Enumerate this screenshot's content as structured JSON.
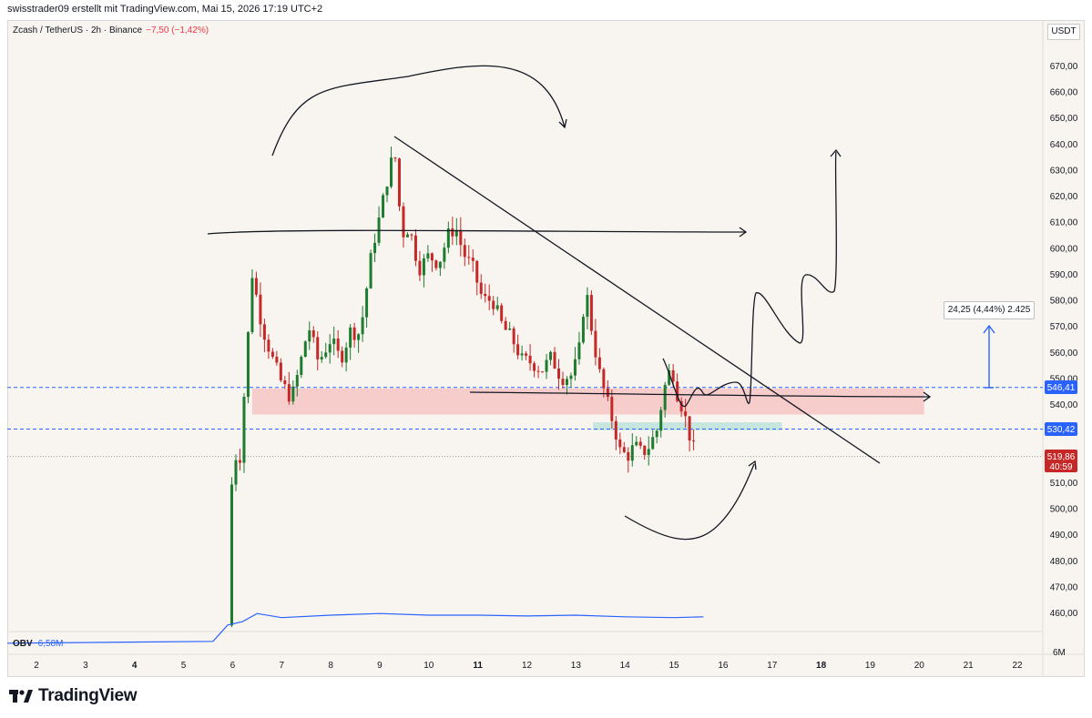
{
  "header": {
    "author_line": "swisstrader09 erstellt mit TradingView.com, Mai 15, 2026 17:19 UTC+2"
  },
  "chart": {
    "symbol": "Zcash / TetherUS · 2h · Binance",
    "change": "−7,50 (−1,42%)",
    "currency": "USDT",
    "measure_label": "24,25 (4,44%) 2.425",
    "price_labels": {
      "upper_level": "546,41",
      "lower_level": "530,42",
      "last_price": "519,86",
      "countdown": "40:59"
    },
    "indicator": {
      "name": "OBV",
      "value": "6,58M",
      "axis_label": "6M"
    },
    "colors": {
      "up": "#089981",
      "down": "#f23645",
      "up_candle": "#1e7c2e",
      "down_candle": "#c62828",
      "zone_red": "#f7c5c5",
      "zone_teal": "#bfe3dc",
      "level_line": "#2962ff",
      "obv_line": "#2962ff",
      "background": "#f8f4ef"
    }
  },
  "chart_data": {
    "type": "candlestick",
    "timeframe": "2h",
    "ylim": [
      450,
      675
    ],
    "y_ticks": [
      "670,00",
      "660,00",
      "650,00",
      "640,00",
      "630,00",
      "620,00",
      "610,00",
      "600,00",
      "590,00",
      "580,00",
      "570,00",
      "560,00",
      "550,00",
      "540,00",
      "530,00",
      "520,00",
      "510,00",
      "500,00",
      "490,00",
      "480,00",
      "470,00",
      "460,00"
    ],
    "x_ticks": [
      "2",
      "3",
      "4",
      "5",
      "6",
      "7",
      "8",
      "9",
      "10",
      "11",
      "12",
      "13",
      "14",
      "15",
      "16",
      "17",
      "18",
      "19",
      "20",
      "21",
      "22"
    ],
    "x_ticks_bold": [
      "4",
      "11",
      "18"
    ],
    "levels": [
      546.41,
      530.42
    ],
    "last_price": 519.86,
    "trendline": [
      {
        "day": 9.3,
        "price": 642
      },
      {
        "day": 18.2,
        "price": 513
      }
    ],
    "resistance_zone": [
      536,
      546
    ],
    "support_zone": [
      530,
      533
    ],
    "measure": {
      "from": 546.41,
      "to": 570.66
    },
    "price_path": [
      [
        5.9,
        455
      ],
      [
        6.0,
        520
      ],
      [
        6.15,
        520
      ],
      [
        6.25,
        548
      ],
      [
        6.4,
        590
      ],
      [
        6.6,
        570
      ],
      [
        6.8,
        558
      ],
      [
        7.0,
        548
      ],
      [
        7.2,
        542
      ],
      [
        7.35,
        553
      ],
      [
        7.55,
        570
      ],
      [
        7.75,
        556
      ],
      [
        8.0,
        565
      ],
      [
        8.2,
        557
      ],
      [
        8.4,
        568
      ],
      [
        8.6,
        567
      ],
      [
        8.85,
        600
      ],
      [
        9.0,
        612
      ],
      [
        9.15,
        626
      ],
      [
        9.3,
        638
      ],
      [
        9.45,
        605
      ],
      [
        9.6,
        608
      ],
      [
        9.8,
        592
      ],
      [
        10.0,
        597
      ],
      [
        10.2,
        594
      ],
      [
        10.4,
        605
      ],
      [
        10.55,
        608
      ],
      [
        10.7,
        598
      ],
      [
        10.9,
        592
      ],
      [
        11.1,
        580
      ],
      [
        11.3,
        580
      ],
      [
        11.5,
        570
      ],
      [
        11.7,
        565
      ],
      [
        11.9,
        557
      ],
      [
        12.1,
        556
      ],
      [
        12.3,
        553
      ],
      [
        12.5,
        558
      ],
      [
        12.7,
        550
      ],
      [
        12.9,
        551
      ],
      [
        13.05,
        558
      ],
      [
        13.2,
        585
      ],
      [
        13.35,
        565
      ],
      [
        13.5,
        550
      ],
      [
        13.65,
        540
      ],
      [
        13.8,
        530
      ],
      [
        13.9,
        522
      ],
      [
        14.05,
        520
      ],
      [
        14.2,
        524
      ],
      [
        14.35,
        521
      ],
      [
        14.5,
        524
      ],
      [
        14.65,
        530
      ],
      [
        14.8,
        546
      ],
      [
        14.95,
        555
      ],
      [
        15.05,
        545
      ],
      [
        15.2,
        537
      ],
      [
        15.3,
        529
      ],
      [
        15.45,
        520
      ]
    ],
    "obv_path": [
      [
        0.0,
        6.25
      ],
      [
        5.6,
        6.28
      ],
      [
        5.9,
        6.48
      ],
      [
        6.2,
        6.52
      ],
      [
        6.5,
        6.62
      ],
      [
        7.0,
        6.57
      ],
      [
        8.0,
        6.6
      ],
      [
        9.0,
        6.62
      ],
      [
        10.0,
        6.6
      ],
      [
        11.0,
        6.6
      ],
      [
        12.0,
        6.59
      ],
      [
        13.0,
        6.6
      ],
      [
        14.0,
        6.58
      ],
      [
        15.0,
        6.57
      ],
      [
        15.6,
        6.58
      ]
    ]
  }
}
